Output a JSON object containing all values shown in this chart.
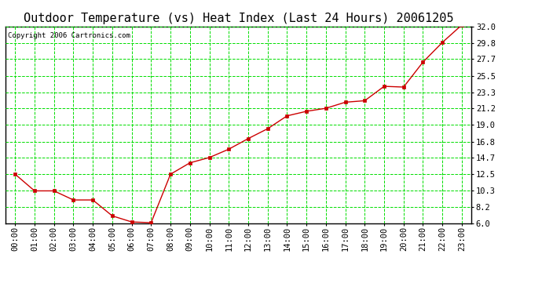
{
  "title": "Outdoor Temperature (vs) Heat Index (Last 24 Hours) 20061205",
  "copyright": "Copyright 2006 Cartronics.com",
  "x_labels": [
    "00:00",
    "01:00",
    "02:00",
    "03:00",
    "04:00",
    "05:00",
    "06:00",
    "07:00",
    "08:00",
    "09:00",
    "10:00",
    "11:00",
    "12:00",
    "13:00",
    "14:00",
    "15:00",
    "16:00",
    "17:00",
    "18:00",
    "19:00",
    "20:00",
    "21:00",
    "22:00",
    "23:00"
  ],
  "y_values": [
    12.5,
    10.3,
    10.3,
    9.1,
    9.1,
    7.0,
    6.2,
    6.1,
    12.5,
    14.0,
    14.7,
    15.8,
    17.2,
    18.5,
    20.2,
    20.8,
    21.2,
    22.0,
    22.2,
    24.1,
    24.0,
    27.3,
    29.9,
    32.2
  ],
  "y_ticks": [
    6.0,
    8.2,
    10.3,
    12.5,
    14.7,
    16.8,
    19.0,
    21.2,
    23.3,
    25.5,
    27.7,
    29.8,
    32.0
  ],
  "y_tick_labels": [
    "6.0",
    "8.2",
    "10.3",
    "12.5",
    "14.7",
    "16.8",
    "19.0",
    "21.2",
    "23.3",
    "25.5",
    "27.7",
    "29.8",
    "32.0"
  ],
  "y_min": 6.0,
  "y_max": 32.0,
  "line_color": "#cc0000",
  "marker_color": "#cc0000",
  "bg_color": "#ffffff",
  "plot_bg_color": "#ffffff",
  "grid_color": "#00dd00",
  "title_fontsize": 11,
  "copyright_fontsize": 6.5,
  "tick_fontsize": 7.5
}
